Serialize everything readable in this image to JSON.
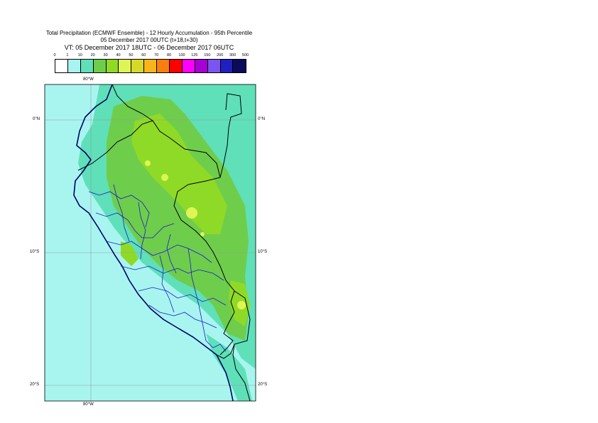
{
  "title": {
    "line1": "Total Precipitation (ECMWF Ensemble) - 12 Hourly Accumulation - 95th Percentile",
    "line2": "05 December 2017 00UTC (t+18,t+30)",
    "line3": "VT: 05 December 2017 18UTC - 06 December 2017 06UTC"
  },
  "legend": {
    "labels": [
      "0",
      "1",
      "10",
      "20",
      "30",
      "40",
      "50",
      "60",
      "70",
      "80",
      "100",
      "125",
      "150",
      "200",
      "300",
      "500"
    ],
    "colors": [
      "#ffffff",
      "#a8f5f0",
      "#5fe0b9",
      "#6fcd4c",
      "#8fda26",
      "#dff556",
      "#d6d92a",
      "#f7b51a",
      "#fa7d0e",
      "#ff0000",
      "#ff00ff",
      "#a500d4",
      "#7b55f0",
      "#2020c0",
      "#0b0b5c"
    ]
  },
  "axes": {
    "lon_top": "80°W",
    "lon_bottom": "80°W",
    "lat_labels": [
      "0°N",
      "10°S",
      "20°S"
    ]
  },
  "colors": {
    "sea": "#a8f5f0",
    "low": "#5fe0b9",
    "mid": "#6fcd4c",
    "high": "#8fda26",
    "peak": "#dff556",
    "coast": "#000066",
    "border": "#000000",
    "admin": "#1a1ad0",
    "grid": "#999999"
  }
}
